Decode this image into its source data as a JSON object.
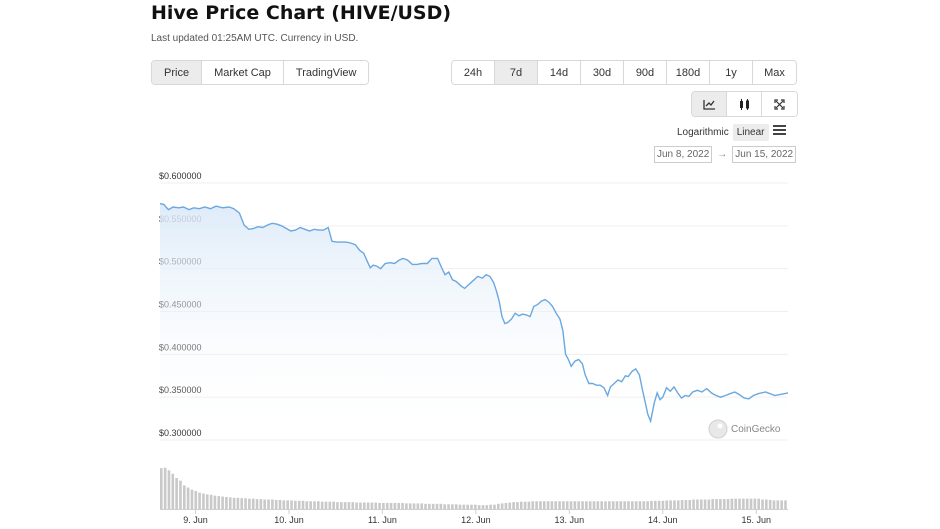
{
  "header": {
    "title": "Hive Price Chart (HIVE/USD)",
    "subtitle": "Last updated 01:25AM UTC. Currency in USD."
  },
  "view_tabs": [
    {
      "label": "Price",
      "active": true
    },
    {
      "label": "Market Cap",
      "active": false
    },
    {
      "label": "TradingView",
      "active": false
    }
  ],
  "range_tabs": [
    {
      "label": "24h",
      "active": false
    },
    {
      "label": "7d",
      "active": true
    },
    {
      "label": "14d",
      "active": false
    },
    {
      "label": "30d",
      "active": false
    },
    {
      "label": "90d",
      "active": false
    },
    {
      "label": "180d",
      "active": false
    },
    {
      "label": "1y",
      "active": false
    },
    {
      "label": "Max",
      "active": false
    }
  ],
  "chart_types": [
    {
      "icon": "line-chart-icon",
      "active": true
    },
    {
      "icon": "candlestick-icon",
      "active": false
    },
    {
      "icon": "fullscreen-icon",
      "active": false
    }
  ],
  "scale": {
    "log_label": "Logarithmic",
    "linear_label": "Linear",
    "selected": "linear"
  },
  "date_range": {
    "from": "Jun 8, 2022",
    "arrow": "→",
    "to": "Jun 15, 2022"
  },
  "watermark": "CoinGecko",
  "colors": {
    "line": "#6aa8df",
    "fill_top": "#dbe9f8",
    "volume": "#c9c9c9",
    "grid": "#efefef"
  },
  "chart_data": {
    "type": "area",
    "xlabel": "",
    "ylabel": "",
    "ylim": [
      0.3,
      0.6
    ],
    "y_ticks": [
      "$0.300000",
      "$0.350000",
      "$0.400000",
      "$0.450000",
      "$0.500000",
      "$0.550000",
      "$0.600000"
    ],
    "x_ticks": [
      {
        "x": 9,
        "label": "9. Jun"
      },
      {
        "x": 10,
        "label": "10. Jun"
      },
      {
        "x": 11,
        "label": "11. Jun"
      },
      {
        "x": 12,
        "label": "12. Jun"
      },
      {
        "x": 13,
        "label": "13. Jun"
      },
      {
        "x": 14,
        "label": "14. Jun"
      },
      {
        "x": 15,
        "label": "15. Jun"
      }
    ],
    "xlim": [
      8.62,
      15.34
    ],
    "grid": true,
    "series": [
      {
        "values": [
          [
            8.62,
            0.576
          ],
          [
            8.66,
            0.575
          ],
          [
            8.71,
            0.569
          ],
          [
            8.76,
            0.572
          ],
          [
            8.82,
            0.571
          ],
          [
            8.87,
            0.572
          ],
          [
            8.93,
            0.569
          ],
          [
            8.98,
            0.571
          ],
          [
            9.04,
            0.57
          ],
          [
            9.1,
            0.572
          ],
          [
            9.16,
            0.57
          ],
          [
            9.22,
            0.573
          ],
          [
            9.29,
            0.571
          ],
          [
            9.36,
            0.572
          ],
          [
            9.41,
            0.57
          ],
          [
            9.47,
            0.565
          ],
          [
            9.52,
            0.551
          ],
          [
            9.57,
            0.546
          ],
          [
            9.62,
            0.547
          ],
          [
            9.67,
            0.549
          ],
          [
            9.72,
            0.548
          ],
          [
            9.77,
            0.551
          ],
          [
            9.82,
            0.553
          ],
          [
            9.87,
            0.552
          ],
          [
            9.92,
            0.55
          ],
          [
            9.97,
            0.547
          ],
          [
            10.02,
            0.544
          ],
          [
            10.07,
            0.545
          ],
          [
            10.12,
            0.548
          ],
          [
            10.17,
            0.546
          ],
          [
            10.22,
            0.544
          ],
          [
            10.27,
            0.546
          ],
          [
            10.32,
            0.545
          ],
          [
            10.37,
            0.545
          ],
          [
            10.42,
            0.548
          ],
          [
            10.46,
            0.532
          ],
          [
            10.51,
            0.531
          ],
          [
            10.56,
            0.531
          ],
          [
            10.61,
            0.531
          ],
          [
            10.66,
            0.53
          ],
          [
            10.71,
            0.528
          ],
          [
            10.76,
            0.521
          ],
          [
            10.8,
            0.518
          ],
          [
            10.84,
            0.508
          ],
          [
            10.87,
            0.501
          ],
          [
            10.9,
            0.504
          ],
          [
            10.94,
            0.503
          ],
          [
            10.98,
            0.5
          ],
          [
            11.03,
            0.506
          ],
          [
            11.08,
            0.507
          ],
          [
            11.13,
            0.506
          ],
          [
            11.18,
            0.51
          ],
          [
            11.22,
            0.512
          ],
          [
            11.27,
            0.51
          ],
          [
            11.32,
            0.505
          ],
          [
            11.37,
            0.505
          ],
          [
            11.42,
            0.506
          ],
          [
            11.48,
            0.506
          ],
          [
            11.53,
            0.512
          ],
          [
            11.59,
            0.512
          ],
          [
            11.63,
            0.502
          ],
          [
            11.67,
            0.493
          ],
          [
            11.71,
            0.496
          ],
          [
            11.75,
            0.487
          ],
          [
            11.79,
            0.485
          ],
          [
            11.84,
            0.48
          ],
          [
            11.88,
            0.477
          ],
          [
            11.92,
            0.481
          ],
          [
            11.97,
            0.486
          ],
          [
            12.02,
            0.491
          ],
          [
            12.07,
            0.489
          ],
          [
            12.11,
            0.493
          ],
          [
            12.15,
            0.491
          ],
          [
            12.19,
            0.484
          ],
          [
            12.22,
            0.474
          ],
          [
            12.25,
            0.462
          ],
          [
            12.28,
            0.444
          ],
          [
            12.31,
            0.436
          ],
          [
            12.34,
            0.437
          ],
          [
            12.38,
            0.441
          ],
          [
            12.42,
            0.448
          ],
          [
            12.46,
            0.445
          ],
          [
            12.5,
            0.447
          ],
          [
            12.54,
            0.446
          ],
          [
            12.58,
            0.444
          ],
          [
            12.62,
            0.456
          ],
          [
            12.66,
            0.458
          ],
          [
            12.7,
            0.462
          ],
          [
            12.74,
            0.464
          ],
          [
            12.78,
            0.461
          ],
          [
            12.82,
            0.456
          ],
          [
            12.86,
            0.448
          ],
          [
            12.9,
            0.441
          ],
          [
            12.93,
            0.428
          ],
          [
            12.96,
            0.4
          ],
          [
            12.99,
            0.394
          ],
          [
            13.02,
            0.386
          ],
          [
            13.06,
            0.392
          ],
          [
            13.1,
            0.394
          ],
          [
            13.14,
            0.389
          ],
          [
            13.17,
            0.376
          ],
          [
            13.21,
            0.366
          ],
          [
            13.25,
            0.366
          ],
          [
            13.29,
            0.364
          ],
          [
            13.33,
            0.364
          ],
          [
            13.37,
            0.361
          ],
          [
            13.41,
            0.352
          ],
          [
            13.44,
            0.362
          ],
          [
            13.48,
            0.366
          ],
          [
            13.52,
            0.37
          ],
          [
            13.56,
            0.368
          ],
          [
            13.6,
            0.375
          ],
          [
            13.63,
            0.374
          ],
          [
            13.67,
            0.38
          ],
          [
            13.71,
            0.383
          ],
          [
            13.75,
            0.376
          ],
          [
            13.78,
            0.36
          ],
          [
            13.81,
            0.345
          ],
          [
            13.84,
            0.33
          ],
          [
            13.87,
            0.322
          ],
          [
            13.91,
            0.344
          ],
          [
            13.94,
            0.355
          ],
          [
            13.97,
            0.347
          ],
          [
            14.0,
            0.35
          ],
          [
            14.04,
            0.361
          ],
          [
            14.08,
            0.357
          ],
          [
            14.12,
            0.362
          ],
          [
            14.16,
            0.355
          ],
          [
            14.2,
            0.349
          ],
          [
            14.24,
            0.352
          ],
          [
            14.28,
            0.351
          ],
          [
            14.32,
            0.356
          ],
          [
            14.37,
            0.358
          ],
          [
            14.42,
            0.356
          ],
          [
            14.47,
            0.36
          ],
          [
            14.52,
            0.355
          ],
          [
            14.57,
            0.352
          ],
          [
            14.62,
            0.35
          ],
          [
            14.67,
            0.352
          ],
          [
            14.72,
            0.354
          ],
          [
            14.77,
            0.356
          ],
          [
            14.82,
            0.353
          ],
          [
            14.87,
            0.349
          ],
          [
            14.92,
            0.348
          ],
          [
            14.97,
            0.352
          ],
          [
            15.02,
            0.354
          ],
          [
            15.1,
            0.356
          ],
          [
            15.2,
            0.352
          ],
          [
            15.34,
            0.355
          ]
        ]
      }
    ],
    "volume_relative": [
      0.95,
      0.96,
      0.9,
      0.82,
      0.72,
      0.66,
      0.55,
      0.5,
      0.45,
      0.42,
      0.38,
      0.36,
      0.34,
      0.33,
      0.31,
      0.3,
      0.29,
      0.28,
      0.27,
      0.26,
      0.26,
      0.25,
      0.25,
      0.24,
      0.24,
      0.23,
      0.23,
      0.22,
      0.22,
      0.22,
      0.21,
      0.21,
      0.2,
      0.2,
      0.2,
      0.19,
      0.19,
      0.19,
      0.18,
      0.18,
      0.18,
      0.18,
      0.17,
      0.17,
      0.17,
      0.17,
      0.16,
      0.16,
      0.16,
      0.16,
      0.16,
      0.15,
      0.15,
      0.15,
      0.15,
      0.15,
      0.15,
      0.14,
      0.14,
      0.14,
      0.14,
      0.14,
      0.14,
      0.14,
      0.13,
      0.13,
      0.13,
      0.13,
      0.13,
      0.12,
      0.12,
      0.12,
      0.12,
      0.12,
      0.11,
      0.11,
      0.11,
      0.11,
      0.1,
      0.1,
      0.1,
      0.1,
      0.1,
      0.09,
      0.09,
      0.09,
      0.1,
      0.1,
      0.12,
      0.13,
      0.14,
      0.15,
      0.16,
      0.16,
      0.17,
      0.17,
      0.17,
      0.18,
      0.18,
      0.18,
      0.18,
      0.18,
      0.18,
      0.18,
      0.18,
      0.18,
      0.18,
      0.18,
      0.18,
      0.18,
      0.18,
      0.18,
      0.18,
      0.18,
      0.18,
      0.18,
      0.18,
      0.18,
      0.18,
      0.18,
      0.18,
      0.18,
      0.18,
      0.18,
      0.18,
      0.18,
      0.18,
      0.18,
      0.19,
      0.19,
      0.19,
      0.19,
      0.2,
      0.2,
      0.2,
      0.2,
      0.21,
      0.21,
      0.21,
      0.22,
      0.22,
      0.22,
      0.22,
      0.22,
      0.23,
      0.23,
      0.23,
      0.23,
      0.23,
      0.24,
      0.24,
      0.24,
      0.24,
      0.24,
      0.24,
      0.24,
      0.24,
      0.22,
      0.22,
      0.21,
      0.2,
      0.2,
      0.2,
      0.2
    ]
  }
}
